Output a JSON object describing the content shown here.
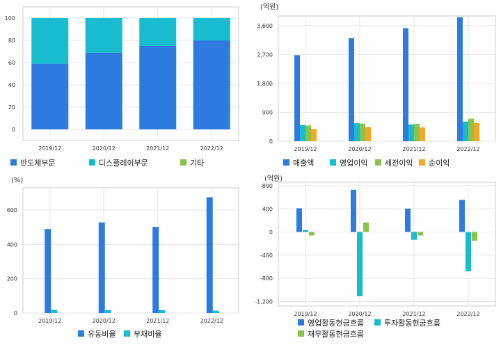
{
  "colors": {
    "blue": "#2E7BE0",
    "teal": "#17BCCF",
    "green": "#8BC34A",
    "orange": "#F5A623",
    "grid": "#E6E6E6",
    "frame": "#CCCCCC"
  },
  "chart_data": [
    {
      "type": "bar",
      "stacked": true,
      "categories": [
        "2019/12",
        "2020/12",
        "2021/12",
        "2022/12"
      ],
      "y_ticks": [
        "0",
        "20",
        "40",
        "60",
        "80",
        "100"
      ],
      "ylim": [
        -10,
        110
      ],
      "series": [
        {
          "name": "반도체부문",
          "color": "blue",
          "values": [
            59,
            69,
            75,
            80
          ]
        },
        {
          "name": "디스플레이부문",
          "color": "teal",
          "values": [
            41,
            31,
            25,
            20
          ]
        },
        {
          "name": "기타",
          "color": "green",
          "values": [
            0,
            0,
            0,
            0
          ]
        }
      ],
      "unit": "",
      "legend": "bottom-left"
    },
    {
      "type": "bar",
      "categories": [
        "2019/12",
        "2020/12",
        "2021/12",
        "2022/12"
      ],
      "y_ticks": [
        "0",
        "900",
        "1,800",
        "2,700",
        "3,600"
      ],
      "ylim": [
        0,
        3900
      ],
      "series": [
        {
          "name": "매출액",
          "color": "blue",
          "values": [
            2680,
            3210,
            3520,
            3860
          ]
        },
        {
          "name": "영업이익",
          "color": "teal",
          "values": [
            500,
            560,
            520,
            610
          ]
        },
        {
          "name": "세전이익",
          "color": "green",
          "values": [
            490,
            550,
            540,
            700
          ]
        },
        {
          "name": "순이익",
          "color": "orange",
          "values": [
            380,
            440,
            430,
            570
          ]
        }
      ],
      "unit": "(억원)",
      "legend": "bottom-left"
    },
    {
      "type": "bar",
      "categories": [
        "2019/12",
        "2020/12",
        "2021/12",
        "2022/12"
      ],
      "y_ticks": [
        "0",
        "200",
        "400",
        "600"
      ],
      "ylim": [
        0,
        730
      ],
      "series": [
        {
          "name": "유동비율",
          "color": "blue",
          "values": [
            490,
            528,
            502,
            675
          ]
        },
        {
          "name": "부채비율",
          "color": "teal",
          "values": [
            18,
            17,
            17,
            14
          ]
        }
      ],
      "unit": "(%)",
      "legend": "bottom-center"
    },
    {
      "type": "bar",
      "categories": [
        "2019/12",
        "2020/12",
        "2021/12",
        "2022/12"
      ],
      "y_ticks": [
        "800",
        "400",
        "0",
        "-400",
        "-800",
        "-1,200"
      ],
      "ylim": [
        -1280,
        860
      ],
      "series": [
        {
          "name": "영업활동현금흐름",
          "color": "blue",
          "values": [
            410,
            730,
            405,
            555
          ]
        },
        {
          "name": "투자활동현금흐름",
          "color": "teal",
          "values": [
            35,
            -1110,
            -135,
            -680
          ]
        },
        {
          "name": "재무활동현금흐름",
          "color": "green",
          "values": [
            -60,
            165,
            -60,
            -150
          ]
        }
      ],
      "unit": "(억원)",
      "legend": "bottom-left"
    }
  ]
}
